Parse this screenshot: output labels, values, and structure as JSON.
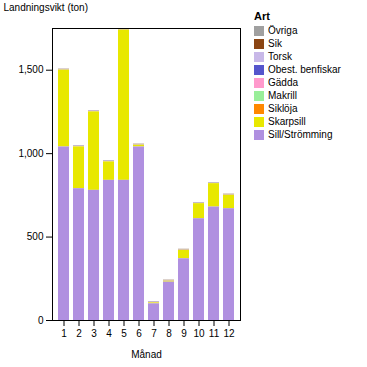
{
  "chart_data": {
    "type": "bar",
    "stacked": true,
    "xlabel": "Månad",
    "ylabel": "Landningsvikt (ton)",
    "legend_title": "Art",
    "legend": "upper right",
    "grid": false,
    "categories": [
      "1",
      "2",
      "3",
      "4",
      "5",
      "6",
      "7",
      "8",
      "9",
      "10",
      "11",
      "12"
    ],
    "series": [
      {
        "name": "Övriga",
        "color": "#a0a0a0",
        "values": [
          1,
          1,
          1,
          1,
          1,
          1,
          1,
          1,
          1,
          1,
          1,
          1
        ]
      },
      {
        "name": "Sik",
        "color": "#8b4513",
        "values": [
          1,
          1,
          1,
          1,
          1,
          1,
          1,
          1,
          1,
          1,
          1,
          1
        ]
      },
      {
        "name": "Torsk",
        "color": "#c8b8e8",
        "values": [
          1,
          1,
          1,
          1,
          1,
          1,
          1,
          1,
          1,
          1,
          1,
          1
        ]
      },
      {
        "name": "Obest. benfiskar",
        "color": "#5555cc",
        "values": [
          1,
          1,
          1,
          1,
          1,
          1,
          1,
          1,
          1,
          1,
          1,
          1
        ]
      },
      {
        "name": "Gädda",
        "color": "#ff99cc",
        "values": [
          1,
          1,
          1,
          1,
          1,
          1,
          1,
          1,
          1,
          1,
          1,
          1
        ]
      },
      {
        "name": "Makrill",
        "color": "#99ee99",
        "values": [
          1,
          1,
          1,
          1,
          1,
          1,
          1,
          1,
          1,
          1,
          1,
          1
        ]
      },
      {
        "name": "Siklöja",
        "color": "#ff8800",
        "values": [
          1,
          1,
          1,
          1,
          1,
          1,
          1,
          1,
          1,
          1,
          1,
          1
        ]
      },
      {
        "name": "Skarpsill",
        "color": "#e8e800",
        "values": [
          460,
          250,
          470,
          110,
          900,
          10,
          5,
          5,
          50,
          90,
          140,
          80
        ]
      },
      {
        "name": "Sill/Strömming",
        "color": "#b090e0",
        "values": [
          1040,
          790,
          780,
          840,
          840,
          1040,
          100,
          230,
          370,
          610,
          680,
          670
        ]
      }
    ],
    "ylim": [
      0,
      1750
    ],
    "yticks": [
      0,
      500,
      1000,
      1500
    ]
  }
}
